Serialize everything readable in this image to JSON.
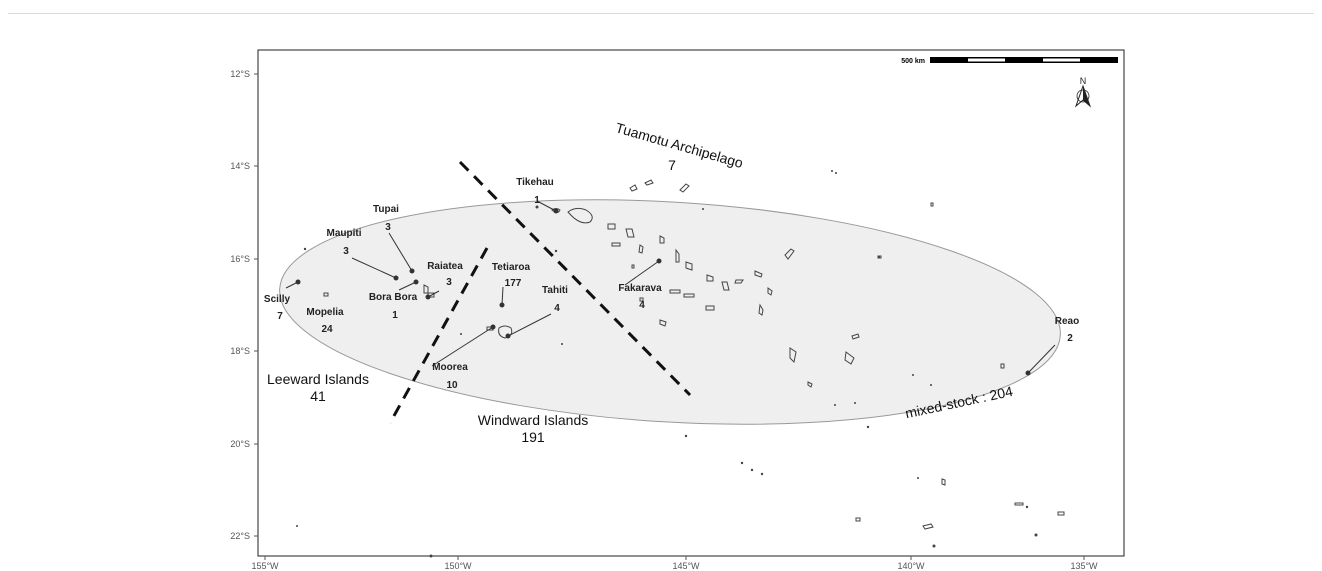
{
  "map": {
    "lat_ticks": [
      "12°S",
      "14°S",
      "16°S",
      "18°S",
      "20°S",
      "22°S"
    ],
    "lon_ticks": [
      "155°W",
      "150°W",
      "145°W",
      "140°W",
      "135°W"
    ],
    "scale_bar": {
      "label": "500 km"
    },
    "north_arrow": {
      "label": "N",
      "icon": "north-arrow-icon"
    },
    "regions": {
      "tuamotu": {
        "name": "Tuamotu Archipelago",
        "count": "7"
      },
      "leeward": {
        "name": "Leeward Islands",
        "count": "41"
      },
      "windward": {
        "name": "Windward Islands",
        "count": "191"
      },
      "mixed": {
        "label": "mixed-stock : 204"
      }
    },
    "sites": {
      "tikehau": {
        "name": "Tikehau",
        "count": "1"
      },
      "tupai": {
        "name": "Tupai",
        "count": "3"
      },
      "maupiti": {
        "name": "Maupiti",
        "count": "3"
      },
      "raiatea": {
        "name": "Raiatea",
        "count": "3"
      },
      "borabora": {
        "name": "Bora Bora",
        "count": "1"
      },
      "tetiaroa": {
        "name": "Tetiaroa",
        "count": "177"
      },
      "tahiti": {
        "name": "Tahiti",
        "count": "4"
      },
      "fakarava": {
        "name": "Fakarava",
        "count": "4"
      },
      "scilly": {
        "name": "Scilly",
        "count": "7"
      },
      "mopelia": {
        "name": "Mopelia",
        "count": "24"
      },
      "moorea": {
        "name": "Moorea",
        "count": "10"
      },
      "reao": {
        "name": "Reao",
        "count": "2"
      }
    },
    "colors": {
      "ellipse_fill": "#efefef",
      "ellipse_stroke": "#999999",
      "panel_border": "#222222"
    }
  }
}
